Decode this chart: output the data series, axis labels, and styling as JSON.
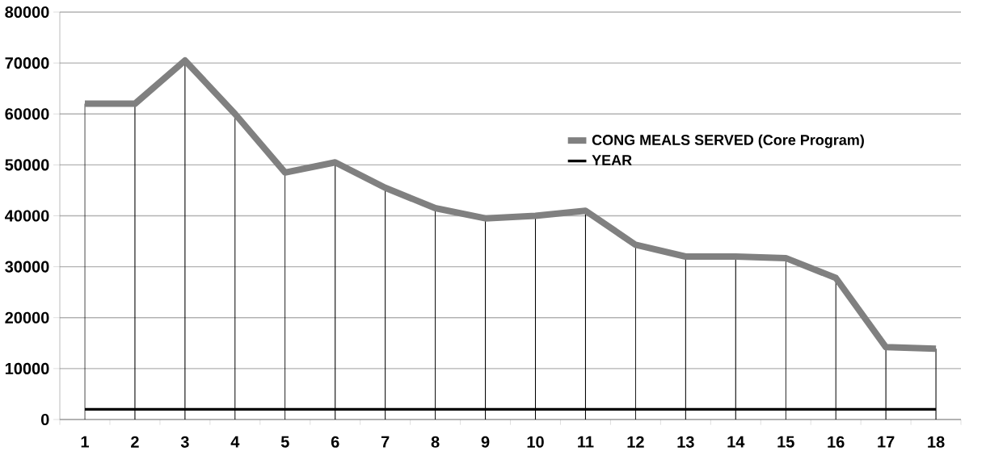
{
  "chart_data": {
    "type": "line",
    "categories": [
      "1",
      "2",
      "3",
      "4",
      "5",
      "6",
      "7",
      "8",
      "9",
      "10",
      "11",
      "12",
      "13",
      "14",
      "15",
      "16",
      "17",
      "18"
    ],
    "series": [
      {
        "name": "CONG MEALS SERVED (Core Program)",
        "color": "#808080",
        "values": [
          62000,
          62000,
          70500,
          60000,
          48500,
          50500,
          45500,
          41500,
          39500,
          40000,
          41000,
          34300,
          32000,
          32000,
          31700,
          27800,
          14200,
          13900
        ],
        "errors": [
          [
            0,
            62000
          ],
          [
            0,
            62000
          ],
          [
            0,
            70500
          ],
          [
            0,
            60000
          ],
          [
            0,
            48500
          ],
          [
            0,
            50500
          ],
          [
            0,
            45500
          ],
          [
            0,
            41500
          ],
          [
            0,
            39500
          ],
          [
            0,
            40000
          ],
          [
            0,
            41000
          ],
          [
            0,
            34300
          ],
          [
            0,
            32000
          ],
          [
            0,
            32000
          ],
          [
            0,
            31700
          ],
          [
            0,
            27800
          ],
          [
            0,
            14200
          ],
          [
            0,
            13900
          ]
        ]
      },
      {
        "name": "YEAR",
        "color": "#000000",
        "values": [
          2000,
          2000,
          2000,
          2000,
          2000,
          2000,
          2000,
          2000,
          2000,
          2000,
          2000,
          2000,
          2000,
          2000,
          2000,
          2000,
          2000,
          2000
        ]
      }
    ],
    "ylim": [
      0,
      80000
    ],
    "yticks": [
      0,
      10000,
      20000,
      30000,
      40000,
      50000,
      60000,
      70000,
      80000
    ],
    "grid": "y",
    "legend": "right"
  }
}
